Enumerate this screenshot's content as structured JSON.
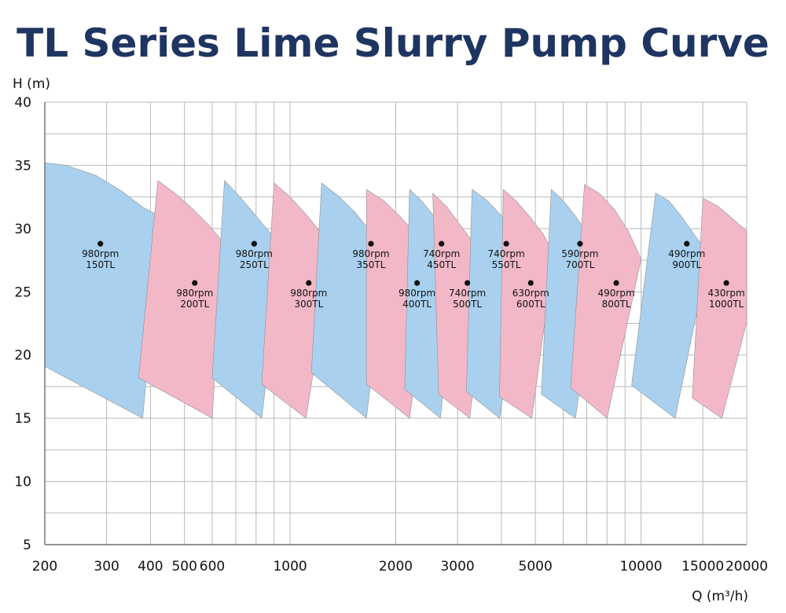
{
  "chart_data": {
    "type": "area",
    "title": "TL Series Lime Slurry Pump Curve",
    "xlabel": "Q (m³/h)",
    "ylabel": "H (m)",
    "x_scale": "log",
    "xlim": [
      200,
      20000
    ],
    "ylim": [
      5,
      40
    ],
    "x_ticks": [
      200,
      300,
      400,
      500,
      600,
      1000,
      2000,
      3000,
      5000,
      10000,
      15000,
      20000
    ],
    "y_ticks": [
      5,
      10,
      15,
      20,
      25,
      30,
      35,
      40
    ],
    "grid": true,
    "colors": {
      "blue": "#a9d1ef",
      "pink": "#f3b8c8",
      "title": "#1f3561"
    },
    "regions": [
      {
        "speed": "980rpm",
        "model": "150TL",
        "color": "blue",
        "point": [
          288,
          28.8
        ],
        "outline": [
          [
            200,
            35.2
          ],
          [
            230,
            35.0
          ],
          [
            280,
            34.2
          ],
          [
            330,
            33.0
          ],
          [
            380,
            31.7
          ],
          [
            430,
            30.9
          ],
          [
            380,
            15
          ],
          [
            200,
            19.1
          ]
        ]
      },
      {
        "speed": "980rpm",
        "model": "200TL",
        "color": "pink",
        "point": [
          535,
          25.7
        ],
        "outline": [
          [
            420,
            33.8
          ],
          [
            470,
            32.8
          ],
          [
            530,
            31.5
          ],
          [
            590,
            30.2
          ],
          [
            640,
            29.0
          ],
          [
            600,
            15
          ],
          [
            370,
            18.2
          ]
        ]
      },
      {
        "speed": "980rpm",
        "model": "250TL",
        "color": "blue",
        "point": [
          790,
          28.8
        ],
        "outline": [
          [
            650,
            33.8
          ],
          [
            720,
            32.5
          ],
          [
            800,
            31.0
          ],
          [
            880,
            29.6
          ],
          [
            950,
            28.8
          ],
          [
            830,
            15
          ],
          [
            600,
            18.2
          ]
        ]
      },
      {
        "speed": "980rpm",
        "model": "300TL",
        "color": "pink",
        "point": [
          1130,
          25.7
        ],
        "outline": [
          [
            900,
            33.6
          ],
          [
            1000,
            32.5
          ],
          [
            1120,
            31.0
          ],
          [
            1230,
            29.6
          ],
          [
            1330,
            28.8
          ],
          [
            1110,
            15
          ],
          [
            830,
            17.7
          ]
        ]
      },
      {
        "speed": "980rpm",
        "model": "350TL",
        "color": "blue",
        "point": [
          1700,
          28.8
        ],
        "outline": [
          [
            1230,
            33.6
          ],
          [
            1370,
            32.6
          ],
          [
            1530,
            31.3
          ],
          [
            1690,
            29.8
          ],
          [
            1870,
            27.8
          ],
          [
            1650,
            15
          ],
          [
            1150,
            18.6
          ]
        ]
      },
      {
        "speed": "980rpm",
        "model": "400TL",
        "color": "pink",
        "point": [
          2300,
          25.7
        ],
        "outline": [
          [
            1650,
            33.1
          ],
          [
            1850,
            32.2
          ],
          [
            2050,
            31.0
          ],
          [
            2300,
            29.5
          ],
          [
            2530,
            27.8
          ],
          [
            2190,
            15
          ],
          [
            1650,
            17.7
          ]
        ]
      },
      {
        "speed": "740rpm",
        "model": "450TL",
        "color": "blue",
        "point": [
          2700,
          28.8
        ],
        "outline": [
          [
            2190,
            33.1
          ],
          [
            2370,
            32.2
          ],
          [
            2600,
            30.8
          ],
          [
            2830,
            29.5
          ],
          [
            3000,
            28.8
          ],
          [
            2680,
            15
          ],
          [
            2120,
            17.3
          ]
        ]
      },
      {
        "speed": "740rpm",
        "model": "500TL",
        "color": "pink",
        "point": [
          3200,
          25.7
        ],
        "outline": [
          [
            2550,
            32.8
          ],
          [
            2800,
            31.7
          ],
          [
            3050,
            30.3
          ],
          [
            3350,
            28.8
          ],
          [
            3650,
            27.3
          ],
          [
            3250,
            15
          ],
          [
            2650,
            16.9
          ]
        ]
      },
      {
        "speed": "740rpm",
        "model": "550TL",
        "color": "blue",
        "point": [
          4130,
          28.8
        ],
        "outline": [
          [
            3300,
            33.1
          ],
          [
            3650,
            32.2
          ],
          [
            4000,
            31.0
          ],
          [
            4350,
            29.9
          ],
          [
            4700,
            28.6
          ],
          [
            3950,
            15
          ],
          [
            3180,
            17.1
          ]
        ]
      },
      {
        "speed": "630rpm",
        "model": "600TL",
        "color": "pink",
        "point": [
          4850,
          25.7
        ],
        "outline": [
          [
            4050,
            33.1
          ],
          [
            4400,
            32.2
          ],
          [
            4800,
            31.0
          ],
          [
            5250,
            29.6
          ],
          [
            5650,
            28.0
          ],
          [
            4880,
            15
          ],
          [
            3950,
            16.7
          ]
        ]
      },
      {
        "speed": "590rpm",
        "model": "700TL",
        "color": "blue",
        "point": [
          6700,
          28.8
        ],
        "outline": [
          [
            5550,
            33.1
          ],
          [
            6000,
            32.2
          ],
          [
            6500,
            31.0
          ],
          [
            7100,
            29.4
          ],
          [
            7600,
            27.9
          ],
          [
            6500,
            15
          ],
          [
            5200,
            16.9
          ]
        ]
      },
      {
        "speed": "490rpm",
        "model": "800TL",
        "color": "pink",
        "point": [
          8500,
          25.7
        ],
        "outline": [
          [
            6900,
            33.5
          ],
          [
            7600,
            32.8
          ],
          [
            8400,
            31.5
          ],
          [
            9200,
            29.8
          ],
          [
            10000,
            27.6
          ],
          [
            8000,
            15
          ],
          [
            6300,
            17.4
          ]
        ]
      },
      {
        "speed": "490rpm",
        "model": "900TL",
        "color": "blue",
        "point": [
          13500,
          28.8
        ],
        "outline": [
          [
            11000,
            32.8
          ],
          [
            12000,
            32.2
          ],
          [
            13000,
            31.0
          ],
          [
            14300,
            29.4
          ],
          [
            15600,
            28.0
          ],
          [
            12500,
            15
          ],
          [
            9400,
            17.6
          ]
        ]
      },
      {
        "speed": "430rpm",
        "model": "1000TL",
        "color": "pink",
        "point": [
          17500,
          25.7
        ],
        "outline": [
          [
            15000,
            32.4
          ],
          [
            16500,
            31.8
          ],
          [
            18200,
            30.8
          ],
          [
            20000,
            29.8
          ],
          [
            20000,
            22.6
          ],
          [
            17000,
            15
          ],
          [
            14000,
            16.6
          ]
        ]
      }
    ]
  }
}
